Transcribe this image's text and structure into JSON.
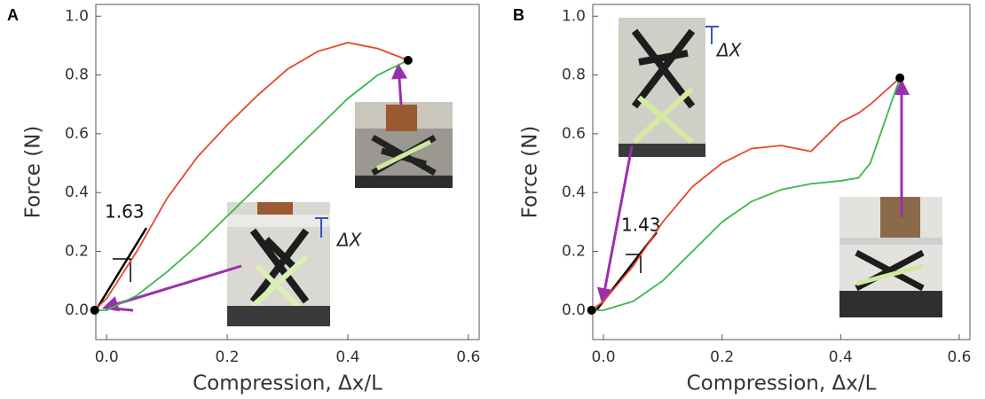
{
  "chart_data": [
    {
      "type": "line",
      "panel": "A",
      "xlabel": "Compression, Δx/L",
      "ylabel": "Force (N)",
      "slope": 1.63,
      "photo_label": "ΔX",
      "xlim": [
        -0.018,
        0.618
      ],
      "ylim": [
        -0.1,
        1.04
      ],
      "xticks": [
        {
          "value": 0,
          "label": "0.0"
        },
        0.2,
        0.4,
        0.6
      ],
      "yticks": [
        {
          "value": 0,
          "label": "0.0"
        },
        0.2,
        0.4,
        0.6,
        0.8,
        {
          "value": 1,
          "label": "1.0"
        }
      ],
      "x": [
        -0.02,
        0,
        0.05,
        0.1,
        0.15,
        0.2,
        0.25,
        0.3,
        0.35,
        0.4,
        0.45,
        0.5
      ],
      "series": [
        {
          "color": "#e8452c",
          "values": [
            0,
            0.04,
            0.2,
            0.38,
            0.52,
            0.63,
            0.73,
            0.82,
            0.88,
            0.91,
            0.89,
            0.85
          ]
        },
        {
          "color": "#3cb84a",
          "values": [
            0,
            0,
            0.05,
            0.13,
            0.22,
            0.32,
            0.42,
            0.52,
            0.62,
            0.72,
            0.8,
            0.85
          ]
        }
      ]
    },
    {
      "type": "line",
      "panel": "B",
      "xlabel": "Compression, Δx/L",
      "ylabel": "Force (N)",
      "slope": 1.43,
      "photo_label": "ΔX",
      "xlim": [
        -0.018,
        0.618
      ],
      "ylim": [
        -0.1,
        1.04
      ],
      "xticks": [
        {
          "value": 0,
          "label": "0.0"
        },
        0.2,
        0.4,
        0.6
      ],
      "yticks": [
        {
          "value": 0,
          "label": "0.0"
        },
        0.2,
        0.4,
        0.6,
        0.8,
        {
          "value": 1,
          "label": "1.0"
        }
      ],
      "x": [
        -0.02,
        0,
        0.05,
        0.1,
        0.15,
        0.2,
        0.25,
        0.3,
        0.35,
        0.4,
        0.43,
        0.45,
        0.5
      ],
      "series": [
        {
          "color": "#e8452c",
          "values": [
            0,
            0.03,
            0.15,
            0.3,
            0.42,
            0.5,
            0.55,
            0.56,
            0.54,
            0.64,
            0.67,
            0.7,
            0.79
          ]
        },
        {
          "color": "#3cb84a",
          "values": [
            0,
            0,
            0.03,
            0.1,
            0.2,
            0.3,
            0.37,
            0.41,
            0.43,
            0.44,
            0.45,
            0.5,
            0.79
          ]
        }
      ]
    }
  ]
}
